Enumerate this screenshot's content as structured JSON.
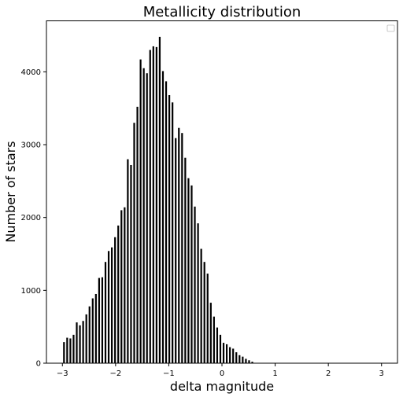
{
  "chart_data": {
    "type": "bar",
    "title": "Metallicity distribution",
    "xlabel": "delta magnitude",
    "ylabel": "Number of stars",
    "xlim": [
      -3.3,
      3.3
    ],
    "ylim": [
      0,
      4700
    ],
    "xticks": [
      -3,
      -2,
      -1,
      0,
      1,
      2,
      3
    ],
    "xtick_labels": [
      "−3",
      "−2",
      "−1",
      "0",
      "1",
      "2",
      "3"
    ],
    "yticks": [
      0,
      1000,
      2000,
      3000,
      4000
    ],
    "ytick_labels": [
      "0",
      "1000",
      "2000",
      "3000",
      "4000"
    ],
    "legend": "top-right, empty",
    "grid": false,
    "bar_color": "#000000",
    "x": [
      -2.97,
      -2.91,
      -2.85,
      -2.79,
      -2.73,
      -2.67,
      -2.61,
      -2.55,
      -2.49,
      -2.43,
      -2.37,
      -2.31,
      -2.25,
      -2.19,
      -2.13,
      -2.07,
      -2.01,
      -1.95,
      -1.89,
      -1.83,
      -1.77,
      -1.71,
      -1.65,
      -1.59,
      -1.53,
      -1.47,
      -1.41,
      -1.35,
      -1.29,
      -1.23,
      -1.17,
      -1.11,
      -1.05,
      -0.99,
      -0.93,
      -0.87,
      -0.81,
      -0.75,
      -0.69,
      -0.63,
      -0.57,
      -0.51,
      -0.45,
      -0.39,
      -0.33,
      -0.27,
      -0.21,
      -0.15,
      -0.09,
      -0.03,
      0.03,
      0.09,
      0.15,
      0.21,
      0.27,
      0.33,
      0.39,
      0.45,
      0.51,
      0.57
    ],
    "values": [
      290,
      350,
      340,
      390,
      560,
      520,
      580,
      670,
      780,
      890,
      950,
      1170,
      1180,
      1390,
      1540,
      1590,
      1730,
      1890,
      2100,
      2140,
      2800,
      2720,
      3300,
      3520,
      4170,
      4050,
      3980,
      4300,
      4350,
      4340,
      4480,
      4010,
      3870,
      3680,
      3580,
      3090,
      3230,
      3160,
      2820,
      2540,
      2440,
      2150,
      1920,
      1570,
      1390,
      1230,
      830,
      640,
      490,
      390,
      280,
      260,
      220,
      200,
      150,
      110,
      90,
      60,
      40,
      20
    ]
  }
}
